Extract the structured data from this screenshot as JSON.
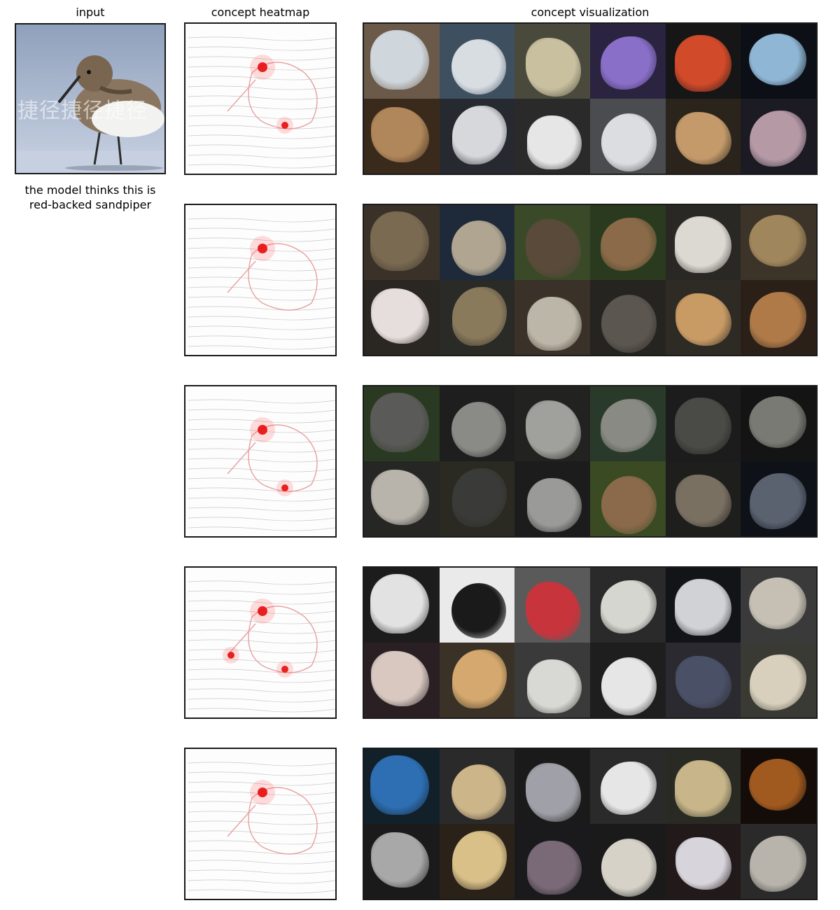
{
  "headers": {
    "input": "input",
    "heatmap": "concept heatmap",
    "visualization": "concept visualization"
  },
  "caption": {
    "line1": "the model thinks this is",
    "line2": "red-backed sandpiper"
  },
  "input_image": {
    "subject": "sandpiper standing in shallow water",
    "watermark_text": "捷径捷径捷径"
  },
  "concepts": [
    {
      "tile_colors": [
        [
          "#6b5a4a",
          "#cfd6dc"
        ],
        [
          "#3e5060",
          "#d8dde2"
        ],
        [
          "#4a4a3c",
          "#c9c0a0"
        ],
        [
          "#2a2440",
          "#8a6fc8"
        ],
        [
          "#161616",
          "#d14a2a"
        ],
        [
          "#0c1016",
          "#8fb6d4"
        ],
        [
          "#3a2a1c",
          "#b0875a"
        ],
        [
          "#262a30",
          "#d6d8dc"
        ],
        [
          "#2a2a2a",
          "#e6e6e6"
        ],
        [
          "#4a4c50",
          "#dcdde0"
        ],
        [
          "#2a241c",
          "#c49a6a"
        ],
        [
          "#1c1a22",
          "#b59aa6"
        ]
      ]
    },
    {
      "tile_colors": [
        [
          "#3a3228",
          "#7a6a52"
        ],
        [
          "#1e2a3a",
          "#b0a590"
        ],
        [
          "#3a4a28",
          "#5a4a3a"
        ],
        [
          "#2a3a1e",
          "#8a6a48"
        ],
        [
          "#2a2824",
          "#dcd8d2"
        ],
        [
          "#3c3428",
          "#a0865c"
        ],
        [
          "#2a2622",
          "#e6dedc"
        ],
        [
          "#2a2a26",
          "#8a7a5c"
        ],
        [
          "#3a3228",
          "#bcb6a8"
        ],
        [
          "#262420",
          "#5c5650"
        ],
        [
          "#2e2a24",
          "#c89a64"
        ],
        [
          "#2a2018",
          "#b07a48"
        ]
      ]
    },
    {
      "tile_colors": [
        [
          "#2a3a22",
          "#5a5a58"
        ],
        [
          "#1e1e1e",
          "#8a8a86"
        ],
        [
          "#222220",
          "#a0a09c"
        ],
        [
          "#2a3a2a",
          "#8a8a84"
        ],
        [
          "#1c1c1c",
          "#4a4a46"
        ],
        [
          "#141414",
          "#7a7a74"
        ],
        [
          "#262624",
          "#b8b4ac"
        ],
        [
          "#2a2a22",
          "#3a3a38"
        ],
        [
          "#1c1c1c",
          "#9a9a98"
        ],
        [
          "#3a4a22",
          "#8a6a4a"
        ],
        [
          "#1e1e1c",
          "#7a7062"
        ],
        [
          "#0e1218",
          "#5a6270"
        ]
      ]
    },
    {
      "tile_colors": [
        [
          "#1c1c1c",
          "#e2e2e2"
        ],
        [
          "#eaeaea",
          "#1a1a1a"
        ],
        [
          "#5a5a5a",
          "#c8343c"
        ],
        [
          "#2a2a2a",
          "#d6d6d0"
        ],
        [
          "#121418",
          "#d0d2d6"
        ],
        [
          "#3a3a3a",
          "#c6c0b4"
        ],
        [
          "#2a2024",
          "#d8c8c0"
        ],
        [
          "#3a3226",
          "#d4a86e"
        ],
        [
          "#3a3a3a",
          "#d8d8d4"
        ],
        [
          "#1e1e1e",
          "#e6e6e6"
        ],
        [
          "#2a2a30",
          "#4a5066"
        ],
        [
          "#3a3a34",
          "#d8d0bc"
        ]
      ]
    },
    {
      "tile_colors": [
        [
          "#12202a",
          "#2e6eb2"
        ],
        [
          "#2a2a2a",
          "#cdb58a"
        ],
        [
          "#1a1a1a",
          "#a0a0a8"
        ],
        [
          "#2a2a2a",
          "#e6e6e6"
        ],
        [
          "#2a2a24",
          "#c8b68a"
        ],
        [
          "#140c08",
          "#a05a20"
        ],
        [
          "#1a1a1a",
          "#a8a8a8"
        ],
        [
          "#2a2218",
          "#d8c088"
        ],
        [
          "#1a1a1c",
          "#7a6a78"
        ],
        [
          "#1a1a1a",
          "#d6d2c8"
        ],
        [
          "#221a1a",
          "#d8d4dc"
        ],
        [
          "#2a2a2a",
          "#b8b4ac"
        ]
      ]
    }
  ]
}
